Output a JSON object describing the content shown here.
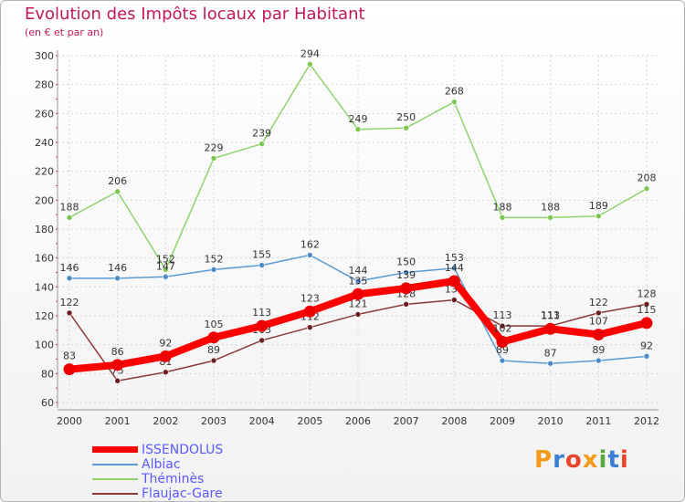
{
  "title": "Evolution des Impôts locaux par Habitant",
  "subtitle": "(en € et par an)",
  "logo": "Proxiti",
  "colors": {
    "title": "#c2185b",
    "grid": "#d6d6d6",
    "axis_text": "#333333",
    "legend_text": "#5a5aff",
    "logo_letters": [
      "#f39a1b",
      "#3a7fd5",
      "#e8452c",
      "#f39a1b",
      "#5aa83a",
      "#3a7fd5",
      "#e8452c"
    ]
  },
  "chart_data": {
    "type": "line",
    "title": "Evolution des Impôts locaux par Habitant",
    "subtitle": "(en € et par an)",
    "xlabel": "",
    "ylabel": "",
    "x": [
      "2000",
      "2001",
      "2002",
      "2003",
      "2004",
      "2005",
      "2006",
      "2007",
      "2008",
      "2009",
      "2010",
      "2011",
      "2012"
    ],
    "ylim": [
      60,
      300
    ],
    "yticks": [
      60,
      80,
      100,
      120,
      140,
      160,
      180,
      200,
      220,
      240,
      260,
      280,
      300
    ],
    "grid": true,
    "legend_position": "bottom-left",
    "series": [
      {
        "name": "Théminès",
        "color": "#8fd46a",
        "marker": "#7cc84e",
        "values": [
          188,
          206,
          152,
          229,
          239,
          294,
          249,
          250,
          268,
          188,
          188,
          189,
          208
        ],
        "labels": [
          "188",
          "206",
          "152",
          "229",
          "239",
          "294",
          "249",
          "250",
          "268",
          "188",
          "188",
          "189",
          "208"
        ]
      },
      {
        "name": "Albiac",
        "color": "#5a9bd5",
        "marker": "#4a8cc8",
        "values": [
          146,
          146,
          147,
          152,
          155,
          162,
          144,
          150,
          153,
          89,
          87,
          89,
          92
        ],
        "labels": [
          "146",
          "146",
          "147",
          "152",
          "155",
          "162",
          "144",
          "150",
          "153",
          "89",
          "87",
          "89",
          "92"
        ]
      },
      {
        "name": "Flaujac-Gare",
        "color": "#8b3a3a",
        "marker": "#6b1e1e",
        "values": [
          122,
          75,
          81,
          89,
          103,
          112,
          121,
          128,
          131,
          113,
          113,
          122,
          128
        ],
        "labels": [
          "122",
          "75",
          "81",
          "89",
          "103",
          "112",
          "121",
          "128",
          "131",
          "113",
          "113",
          "122",
          "128"
        ]
      },
      {
        "name": "ISSENDOLUS",
        "color": "#ff0000",
        "marker": "#ee0000",
        "values": [
          83,
          86,
          92,
          105,
          113,
          123,
          135,
          139,
          144,
          102,
          111,
          107,
          115
        ],
        "labels": [
          "83",
          "86",
          "92",
          "105",
          "113",
          "123",
          "135",
          "139",
          "144",
          "102",
          "111",
          "107",
          "115"
        ]
      }
    ],
    "legend": [
      "ISSENDOLUS",
      "Albiac",
      "Théminès",
      "Flaujac-Gare"
    ]
  }
}
